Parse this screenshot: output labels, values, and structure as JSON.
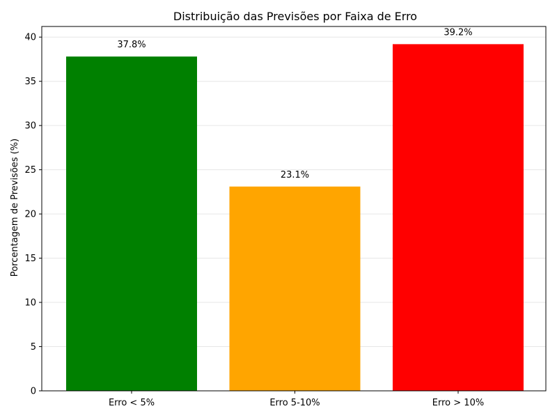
{
  "chart_data": {
    "type": "bar",
    "title": "Distribuição das Previsões por Faixa de Erro",
    "xlabel": "",
    "ylabel": "Porcentagem de Previsões (%)",
    "categories": [
      "Erro < 5%",
      "Erro 5-10%",
      "Erro > 10%"
    ],
    "values": [
      37.8,
      23.1,
      39.2
    ],
    "data_labels": [
      "37.8%",
      "23.1%",
      "39.2%"
    ],
    "colors": [
      "#008000",
      "#ffa500",
      "#ff0000"
    ],
    "ylim": [
      0,
      41.2
    ],
    "yticks": [
      0,
      5,
      10,
      15,
      20,
      25,
      30,
      35,
      40
    ],
    "grid": "y",
    "legend": "none"
  }
}
